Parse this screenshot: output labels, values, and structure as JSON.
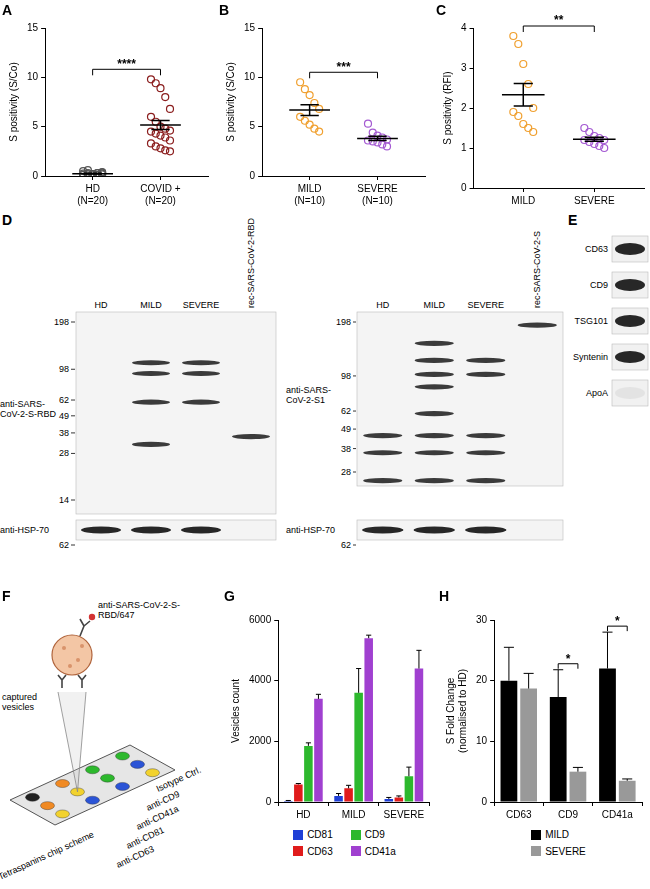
{
  "chart_data": [
    {
      "panel": "A",
      "type": "dot_plot",
      "categories": [
        "HD\n(N=20)",
        "COVID +\n(N=20)"
      ],
      "ylabel": "S positivity (S/Co)",
      "ylim": [
        0,
        15
      ],
      "yticks": [
        0,
        5,
        10,
        15
      ],
      "colors": [
        "#555555",
        "#8b1e1e"
      ],
      "values": [
        [
          0.1,
          0.2,
          0.15,
          0.3,
          0.25,
          0.1,
          0.05,
          0.2,
          0.3,
          0.4,
          0.5,
          0.6,
          0.2,
          0.1,
          0.15,
          0.25,
          0.3,
          0.2,
          0.1,
          0.35
        ],
        [
          9.8,
          9.4,
          8.9,
          8.0,
          6.8,
          6.0,
          5.5,
          5.0,
          4.8,
          4.6,
          4.5,
          4.3,
          4.1,
          3.9,
          3.6,
          3.3,
          3.0,
          2.8,
          2.6,
          2.5
        ]
      ],
      "mean": [
        0.24,
        5.17
      ],
      "sem": [
        0.04,
        0.45
      ],
      "significance": "****",
      "grid": false
    },
    {
      "panel": "B",
      "type": "dot_plot",
      "categories": [
        "MILD\n(N=10)",
        "SEVERE\n(N=10)"
      ],
      "ylabel": "S positivity (S/Co)",
      "ylim": [
        0,
        15
      ],
      "yticks": [
        0,
        5,
        10,
        15
      ],
      "colors": [
        "#f0a030",
        "#a45ad2"
      ],
      "values": [
        [
          9.5,
          8.8,
          8.2,
          7.4,
          6.8,
          6.0,
          5.6,
          5.2,
          4.8,
          4.5
        ],
        [
          5.3,
          4.4,
          4.1,
          3.9,
          3.7,
          3.6,
          3.5,
          3.4,
          3.2,
          3.0
        ]
      ],
      "mean": [
        6.68,
        3.81
      ],
      "sem": [
        0.55,
        0.22
      ],
      "significance": "***",
      "grid": false
    },
    {
      "panel": "C",
      "type": "dot_plot",
      "categories": [
        "MILD",
        "SEVERE"
      ],
      "ylabel": "S positivity (RFI)",
      "ylim": [
        0,
        4
      ],
      "yticks": [
        0,
        1,
        2,
        3,
        4
      ],
      "colors": [
        "#f0a030",
        "#a45ad2"
      ],
      "values": [
        [
          3.8,
          3.6,
          3.1,
          2.6,
          2.0,
          1.9,
          1.8,
          1.6,
          1.5,
          1.4
        ],
        [
          1.5,
          1.4,
          1.3,
          1.25,
          1.2,
          1.2,
          1.15,
          1.1,
          1.05,
          1.0
        ]
      ],
      "mean": [
        2.33,
        1.22
      ],
      "sem": [
        0.28,
        0.05
      ],
      "significance": "**",
      "grid": false
    },
    {
      "panel": "G",
      "type": "bar",
      "categories": [
        "HD",
        "MILD",
        "SEVERE"
      ],
      "ylabel": "Vesicles count",
      "ylim": [
        0,
        6000
      ],
      "yticks": [
        0,
        2000,
        4000,
        6000
      ],
      "series": [
        {
          "name": "CD81",
          "color": "#1f3fd6",
          "values": [
            30,
            200,
            100
          ],
          "errors": [
            20,
            80,
            50
          ]
        },
        {
          "name": "CD63",
          "color": "#e01b1b",
          "values": [
            580,
            450,
            150
          ],
          "errors": [
            30,
            100,
            50
          ]
        },
        {
          "name": "CD9",
          "color": "#2db82d",
          "values": [
            1850,
            3600,
            850
          ],
          "errors": [
            100,
            800,
            300
          ]
        },
        {
          "name": "CD41a",
          "color": "#a040d0",
          "values": [
            3400,
            5400,
            4400
          ],
          "errors": [
            150,
            100,
            600
          ]
        }
      ],
      "legend": "bottom",
      "grid": false
    },
    {
      "panel": "H",
      "type": "bar",
      "categories": [
        "CD63",
        "CD9",
        "CD41a"
      ],
      "ylabel": "S Fold Change\n(normalised to HD)",
      "ylim": [
        0,
        30
      ],
      "yticks": [
        0,
        10,
        20,
        30
      ],
      "series": [
        {
          "name": "MILD",
          "color": "#000000",
          "values": [
            20,
            17.3,
            22
          ],
          "errors": [
            5.5,
            4.5,
            6
          ]
        },
        {
          "name": "SEVERE",
          "color": "#999999",
          "values": [
            18.7,
            5,
            3.5
          ],
          "errors": [
            2.5,
            0.7,
            0.3
          ]
        }
      ],
      "significance": [
        {
          "category": "CD9",
          "label": "*"
        },
        {
          "category": "CD41a",
          "label": "*"
        }
      ],
      "legend": "bottom",
      "grid": false
    }
  ],
  "blots": [
    {
      "panel": "D",
      "antibody": "anti-SARS-\nCoV-2-S-RBD",
      "lanes": [
        "HD",
        "MILD",
        "SEVERE",
        "rec-SARS-CoV-2-RBD"
      ],
      "markers": [
        198,
        98,
        62,
        49,
        38,
        28,
        14
      ],
      "bands": [
        [],
        [
          108,
          92,
          60,
          32
        ],
        [
          108,
          92,
          60
        ],
        [
          36
        ]
      ],
      "loading": {
        "antibody": "anti-HSP-70",
        "marker": 62,
        "bands": [
          true,
          true,
          true,
          false
        ]
      }
    },
    {
      "antibody": "anti-SARS-\nCoV-2-S1",
      "lanes": [
        "HD",
        "MILD",
        "SEVERE",
        "rec-SARS-CoV-2-S"
      ],
      "markers": [
        198,
        98,
        62,
        49,
        38,
        28
      ],
      "bands": [
        [
          45,
          36,
          25
        ],
        [
          150,
          120,
          100,
          85,
          60,
          45,
          36,
          25
        ],
        [
          120,
          100,
          45,
          36,
          25
        ],
        [
          190
        ]
      ],
      "loading": {
        "antibody": "anti-HSP-70",
        "marker": 62,
        "bands": [
          true,
          true,
          true,
          false
        ]
      }
    }
  ],
  "markers_panel": {
    "panel": "E",
    "labels": [
      "CD63",
      "CD9",
      "TSG101",
      "Syntenin",
      "ApoA"
    ],
    "detected": [
      true,
      true,
      true,
      true,
      false
    ]
  },
  "schematic": {
    "panel": "F",
    "probe": "anti-SARS-CoV-2-S-\nRBD/647",
    "vesicles": "captured\nvesicles",
    "chip": "Tetraspanins chip scheme",
    "spots": [
      "anti-CD63",
      "anti-CD81",
      "anti-CD41a",
      "anti-CD9",
      "Isotype Ctrl."
    ]
  }
}
